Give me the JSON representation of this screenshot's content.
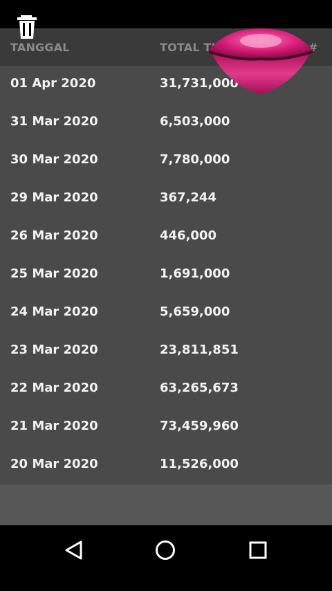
{
  "header": {
    "date_label": "TANGGAL",
    "total_label": "TOTAL TU",
    "hash_label": "#"
  },
  "rows": [
    {
      "date": "01 Apr 2020",
      "total": "31,731,000"
    },
    {
      "date": "31 Mar 2020",
      "total": "6,503,000"
    },
    {
      "date": "30 Mar 2020",
      "total": "7,780,000"
    },
    {
      "date": "29 Mar 2020",
      "total": "367,244"
    },
    {
      "date": "26 Mar 2020",
      "total": "446,000"
    },
    {
      "date": "25 Mar 2020",
      "total": "1,691,000"
    },
    {
      "date": "24 Mar 2020",
      "total": "5,659,000"
    },
    {
      "date": "23 Mar 2020",
      "total": "23,811,851"
    },
    {
      "date": "22 Mar 2020",
      "total": "63,265,673"
    },
    {
      "date": "21 Mar 2020",
      "total": "73,459,960"
    },
    {
      "date": "20 Mar 2020",
      "total": "11,526,000"
    }
  ],
  "icons": {
    "delete": "trash-icon",
    "back": "back-triangle-icon",
    "home": "home-circle-icon",
    "recents": "recents-square-icon",
    "overlay": "lips-sticker-icon"
  },
  "colors": {
    "header_bg": "#3a3a3a",
    "list_bg": "#4a4a4a",
    "header_text": "#8a8a8a",
    "row_text": "#f2f2f2",
    "lips": "#d81b7a"
  }
}
